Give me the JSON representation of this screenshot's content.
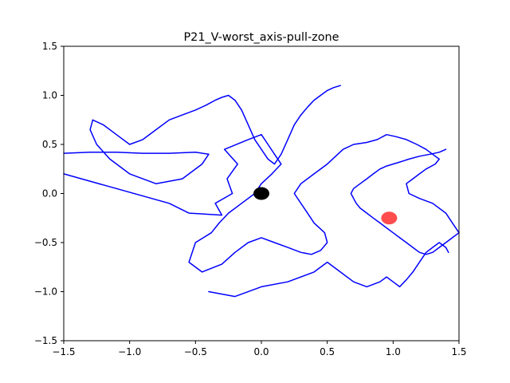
{
  "chart_data": {
    "type": "line",
    "title": "P21_V-worst_axis-pull-zone",
    "xlabel": "",
    "ylabel": "",
    "xlim": [
      -1.5,
      1.5
    ],
    "ylim": [
      -1.5,
      1.5
    ],
    "xticks": [
      -1.5,
      -1.0,
      -0.5,
      0.0,
      0.5,
      1.0,
      1.5
    ],
    "xtick_labels": [
      "−1.5",
      "−1.0",
      "−0.5",
      "0.0",
      "0.5",
      "1.0",
      "1.5"
    ],
    "yticks": [
      -1.5,
      -1.0,
      -0.5,
      0.0,
      0.5,
      1.0,
      1.5
    ],
    "ytick_labels": [
      "−1.5",
      "−1.0",
      "−0.5",
      "0.0",
      "0.5",
      "1.0",
      "1.5"
    ],
    "grid": false,
    "colors": {
      "trajectory": "#0000ff",
      "origin_marker": "#000000",
      "target_marker": "#ff0000"
    },
    "markers": [
      {
        "name": "origin",
        "x": 0.0,
        "y": 0.0,
        "color": "#000000",
        "alpha": 1.0
      },
      {
        "name": "target",
        "x": 0.97,
        "y": -0.25,
        "color": "#ff0000",
        "alpha": 0.7
      }
    ],
    "series": [
      {
        "color": "#0000ff",
        "x": [
          -1.5,
          -0.7,
          -0.55,
          -0.3,
          -0.35,
          -0.22,
          -0.26,
          -0.18,
          -0.28,
          -0.1,
          0.0,
          0.05,
          0.1,
          0.15,
          0.08,
          0.0,
          -0.05,
          -0.15,
          -0.25,
          -0.32,
          -0.38,
          -0.5,
          -0.55,
          -0.45,
          -0.3,
          -0.2,
          -0.1,
          0.0,
          0.1,
          0.2,
          0.3,
          0.38,
          0.45,
          0.5,
          0.48,
          0.4,
          0.35,
          0.3,
          0.25,
          0.3,
          0.4,
          0.5,
          0.58,
          0.62,
          0.7,
          0.8,
          0.88,
          0.95,
          1.02,
          1.1,
          1.18,
          1.25,
          1.3,
          1.35,
          1.32,
          1.25,
          1.2,
          1.15,
          1.1,
          1.12,
          1.2,
          1.3,
          1.4,
          1.45,
          1.5,
          1.45,
          1.4,
          1.35,
          1.3,
          1.25,
          1.2,
          1.15,
          1.1,
          1.05,
          1.0,
          0.95,
          0.9,
          0.85,
          0.8,
          0.75,
          0.72,
          0.7,
          0.68,
          0.7,
          0.75,
          0.8,
          0.85,
          0.9,
          0.95,
          1.0,
          1.05,
          1.12,
          1.2,
          1.28,
          1.35,
          1.4
        ],
        "y": [
          0.2,
          -0.1,
          -0.2,
          -0.22,
          -0.1,
          0.0,
          0.15,
          0.3,
          0.45,
          0.55,
          0.6,
          0.5,
          0.4,
          0.3,
          0.2,
          0.1,
          0.0,
          -0.1,
          -0.2,
          -0.3,
          -0.4,
          -0.5,
          -0.7,
          -0.8,
          -0.72,
          -0.6,
          -0.5,
          -0.45,
          -0.5,
          -0.55,
          -0.6,
          -0.62,
          -0.58,
          -0.5,
          -0.4,
          -0.3,
          -0.2,
          -0.1,
          0.0,
          0.1,
          0.2,
          0.3,
          0.4,
          0.45,
          0.5,
          0.52,
          0.55,
          0.6,
          0.58,
          0.55,
          0.5,
          0.45,
          0.4,
          0.35,
          0.3,
          0.25,
          0.2,
          0.15,
          0.1,
          0.0,
          -0.05,
          -0.1,
          -0.2,
          -0.3,
          -0.4,
          -0.45,
          -0.5,
          -0.55,
          -0.6,
          -0.62,
          -0.6,
          -0.55,
          -0.5,
          -0.45,
          -0.4,
          -0.35,
          -0.3,
          -0.25,
          -0.2,
          -0.15,
          -0.1,
          -0.05,
          0.0,
          0.05,
          0.1,
          0.15,
          0.2,
          0.25,
          0.28,
          0.3,
          0.32,
          0.35,
          0.38,
          0.4,
          0.42,
          0.45
        ]
      },
      {
        "color": "#0000ff",
        "x": [
          -1.5,
          -1.3,
          -1.1,
          -0.9,
          -0.7,
          -0.5,
          -0.4,
          -0.45,
          -0.6,
          -0.8,
          -1.0,
          -1.15,
          -1.25,
          -1.3,
          -1.28,
          -1.2,
          -1.1,
          -1.0,
          -0.9,
          -0.8,
          -0.7,
          -0.6,
          -0.5,
          -0.42,
          -0.35,
          -0.3,
          -0.25,
          -0.2,
          -0.15,
          -0.1,
          -0.05,
          0.0,
          0.05,
          0.1,
          0.15,
          0.2,
          0.25,
          0.3,
          0.35,
          0.4,
          0.45,
          0.5,
          0.55,
          0.6
        ],
        "y": [
          0.41,
          0.42,
          0.42,
          0.41,
          0.41,
          0.42,
          0.4,
          0.3,
          0.15,
          0.1,
          0.2,
          0.35,
          0.5,
          0.65,
          0.75,
          0.7,
          0.6,
          0.5,
          0.55,
          0.65,
          0.75,
          0.8,
          0.85,
          0.9,
          0.95,
          0.98,
          1.0,
          0.95,
          0.85,
          0.7,
          0.55,
          0.45,
          0.35,
          0.3,
          0.4,
          0.55,
          0.7,
          0.8,
          0.88,
          0.95,
          1.0,
          1.05,
          1.08,
          1.1
        ]
      },
      {
        "color": "#0000ff",
        "x": [
          -0.4,
          -0.2,
          0.0,
          0.2,
          0.4,
          0.5,
          0.6,
          0.7,
          0.8,
          0.9,
          0.95,
          1.0,
          1.05,
          1.1,
          1.15,
          1.2,
          1.25,
          1.3,
          1.35,
          1.4,
          1.42
        ],
        "y": [
          -1.0,
          -1.05,
          -0.95,
          -0.9,
          -0.8,
          -0.7,
          -0.8,
          -0.9,
          -0.95,
          -0.9,
          -0.85,
          -0.9,
          -0.95,
          -0.88,
          -0.8,
          -0.7,
          -0.6,
          -0.55,
          -0.5,
          -0.55,
          -0.6
        ]
      }
    ]
  }
}
